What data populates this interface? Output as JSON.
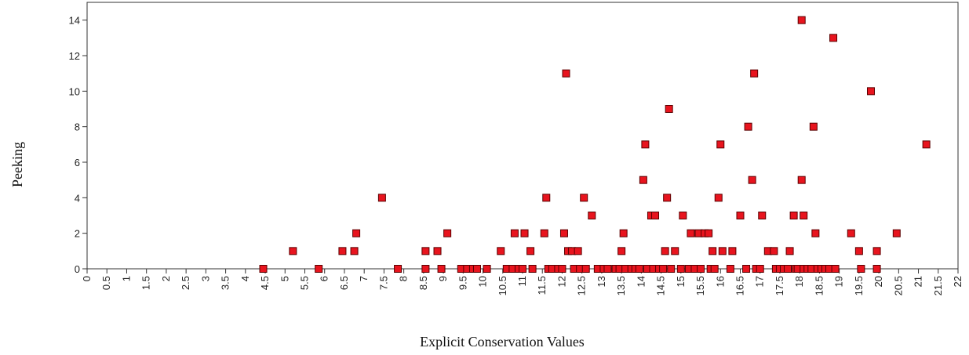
{
  "chart_data": {
    "type": "scatter",
    "xlabel": "Explicit Conservation Values",
    "ylabel": "Peeking",
    "xlim": [
      0,
      22
    ],
    "ylim": [
      0,
      15
    ],
    "x_ticks": [
      "0",
      "0.5",
      "1",
      "1.5",
      "2",
      "2.5",
      "3",
      "3.5",
      "4",
      "4.5",
      "5",
      "5.5",
      "6",
      "6.5",
      "7",
      "7.5",
      "8",
      "8.5",
      "9",
      "9.5",
      "10",
      "10.5",
      "11",
      "11.5",
      "12",
      "12.5",
      "13",
      "13.5",
      "14",
      "14.5",
      "15",
      "15.5",
      "16",
      "16.5",
      "17",
      "17.5",
      "18",
      "18.5",
      "19",
      "19.5",
      "20",
      "20.5",
      "21",
      "21.5",
      "22"
    ],
    "y_ticks": [
      "0",
      "2",
      "4",
      "6",
      "8",
      "10",
      "12",
      "14"
    ],
    "grid": false,
    "marker_color": "#e8141e",
    "marker_edge_color": "#5a0000",
    "points": [
      {
        "x": 4.45,
        "y": 0
      },
      {
        "x": 5.2,
        "y": 1
      },
      {
        "x": 5.85,
        "y": 0
      },
      {
        "x": 6.45,
        "y": 1
      },
      {
        "x": 6.75,
        "y": 1
      },
      {
        "x": 6.8,
        "y": 2
      },
      {
        "x": 7.45,
        "y": 4
      },
      {
        "x": 7.85,
        "y": 0
      },
      {
        "x": 8.55,
        "y": 0
      },
      {
        "x": 8.55,
        "y": 1
      },
      {
        "x": 8.85,
        "y": 1
      },
      {
        "x": 8.95,
        "y": 0
      },
      {
        "x": 9.1,
        "y": 2
      },
      {
        "x": 9.45,
        "y": 0
      },
      {
        "x": 9.6,
        "y": 0
      },
      {
        "x": 9.75,
        "y": 0
      },
      {
        "x": 9.85,
        "y": 0
      },
      {
        "x": 10.1,
        "y": 0
      },
      {
        "x": 10.45,
        "y": 1
      },
      {
        "x": 10.6,
        "y": 0
      },
      {
        "x": 10.75,
        "y": 0
      },
      {
        "x": 10.8,
        "y": 2
      },
      {
        "x": 10.9,
        "y": 0
      },
      {
        "x": 11.0,
        "y": 0
      },
      {
        "x": 11.05,
        "y": 2
      },
      {
        "x": 11.2,
        "y": 1
      },
      {
        "x": 11.25,
        "y": 0
      },
      {
        "x": 11.55,
        "y": 2
      },
      {
        "x": 11.6,
        "y": 4
      },
      {
        "x": 11.65,
        "y": 0
      },
      {
        "x": 11.75,
        "y": 0
      },
      {
        "x": 11.9,
        "y": 0
      },
      {
        "x": 12.0,
        "y": 0
      },
      {
        "x": 12.05,
        "y": 2
      },
      {
        "x": 12.1,
        "y": 11
      },
      {
        "x": 12.15,
        "y": 1
      },
      {
        "x": 12.25,
        "y": 1
      },
      {
        "x": 12.3,
        "y": 0
      },
      {
        "x": 12.4,
        "y": 1
      },
      {
        "x": 12.45,
        "y": 0
      },
      {
        "x": 12.55,
        "y": 4
      },
      {
        "x": 12.6,
        "y": 0
      },
      {
        "x": 12.75,
        "y": 3
      },
      {
        "x": 12.9,
        "y": 0
      },
      {
        "x": 13.05,
        "y": 0
      },
      {
        "x": 13.15,
        "y": 0
      },
      {
        "x": 13.35,
        "y": 0
      },
      {
        "x": 13.45,
        "y": 0
      },
      {
        "x": 13.5,
        "y": 1
      },
      {
        "x": 13.55,
        "y": 2
      },
      {
        "x": 13.6,
        "y": 0
      },
      {
        "x": 13.75,
        "y": 0
      },
      {
        "x": 13.85,
        "y": 0
      },
      {
        "x": 13.95,
        "y": 0
      },
      {
        "x": 14.05,
        "y": 5
      },
      {
        "x": 14.1,
        "y": 7
      },
      {
        "x": 14.15,
        "y": 0
      },
      {
        "x": 14.25,
        "y": 3
      },
      {
        "x": 14.3,
        "y": 0
      },
      {
        "x": 14.35,
        "y": 3
      },
      {
        "x": 14.45,
        "y": 0
      },
      {
        "x": 14.55,
        "y": 0
      },
      {
        "x": 14.6,
        "y": 1
      },
      {
        "x": 14.65,
        "y": 4
      },
      {
        "x": 14.7,
        "y": 9
      },
      {
        "x": 14.75,
        "y": 0
      },
      {
        "x": 14.85,
        "y": 1
      },
      {
        "x": 15.0,
        "y": 0
      },
      {
        "x": 15.05,
        "y": 3
      },
      {
        "x": 15.2,
        "y": 0
      },
      {
        "x": 15.25,
        "y": 2
      },
      {
        "x": 15.35,
        "y": 0
      },
      {
        "x": 15.45,
        "y": 2
      },
      {
        "x": 15.5,
        "y": 0
      },
      {
        "x": 15.6,
        "y": 2
      },
      {
        "x": 15.7,
        "y": 2
      },
      {
        "x": 15.75,
        "y": 0
      },
      {
        "x": 15.8,
        "y": 1
      },
      {
        "x": 15.85,
        "y": 0
      },
      {
        "x": 15.95,
        "y": 4
      },
      {
        "x": 16.0,
        "y": 7
      },
      {
        "x": 16.05,
        "y": 1
      },
      {
        "x": 16.25,
        "y": 0
      },
      {
        "x": 16.3,
        "y": 1
      },
      {
        "x": 16.5,
        "y": 3
      },
      {
        "x": 16.65,
        "y": 0
      },
      {
        "x": 16.7,
        "y": 8
      },
      {
        "x": 16.8,
        "y": 5
      },
      {
        "x": 16.85,
        "y": 11
      },
      {
        "x": 16.9,
        "y": 0
      },
      {
        "x": 17.0,
        "y": 0
      },
      {
        "x": 17.05,
        "y": 3
      },
      {
        "x": 17.2,
        "y": 1
      },
      {
        "x": 17.35,
        "y": 1
      },
      {
        "x": 17.4,
        "y": 0
      },
      {
        "x": 17.5,
        "y": 0
      },
      {
        "x": 17.6,
        "y": 0
      },
      {
        "x": 17.7,
        "y": 0
      },
      {
        "x": 17.75,
        "y": 1
      },
      {
        "x": 17.85,
        "y": 3
      },
      {
        "x": 17.9,
        "y": 0
      },
      {
        "x": 17.95,
        "y": 0
      },
      {
        "x": 18.05,
        "y": 14
      },
      {
        "x": 18.05,
        "y": 5
      },
      {
        "x": 18.1,
        "y": 0
      },
      {
        "x": 18.1,
        "y": 3
      },
      {
        "x": 18.2,
        "y": 0
      },
      {
        "x": 18.3,
        "y": 0
      },
      {
        "x": 18.35,
        "y": 8
      },
      {
        "x": 18.4,
        "y": 2
      },
      {
        "x": 18.45,
        "y": 0
      },
      {
        "x": 18.55,
        "y": 0
      },
      {
        "x": 18.65,
        "y": 0
      },
      {
        "x": 18.75,
        "y": 0
      },
      {
        "x": 18.85,
        "y": 13
      },
      {
        "x": 18.9,
        "y": 0
      },
      {
        "x": 19.3,
        "y": 2
      },
      {
        "x": 19.5,
        "y": 1
      },
      {
        "x": 19.55,
        "y": 0
      },
      {
        "x": 19.8,
        "y": 10
      },
      {
        "x": 19.95,
        "y": 0
      },
      {
        "x": 19.95,
        "y": 1
      },
      {
        "x": 20.45,
        "y": 2
      },
      {
        "x": 21.2,
        "y": 7
      }
    ]
  }
}
